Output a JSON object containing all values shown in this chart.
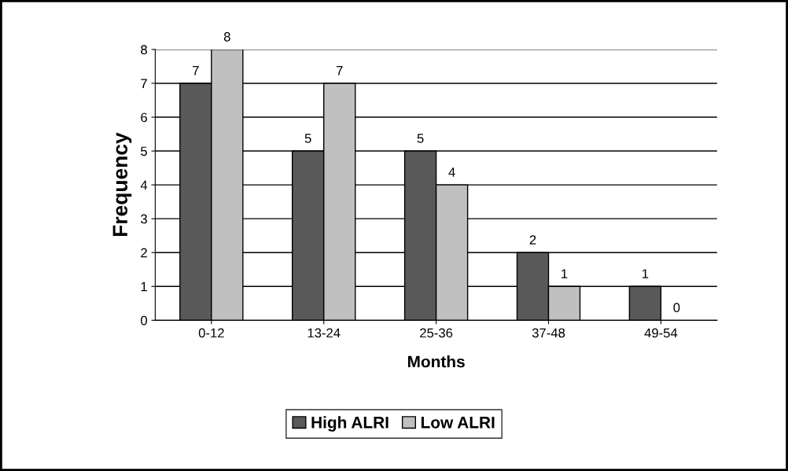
{
  "chart_data": {
    "type": "bar",
    "xlabel": "Months",
    "ylabel": "Frequency",
    "categories": [
      "0-12",
      "13-24",
      "25-36",
      "37-48",
      "49-54"
    ],
    "series": [
      {
        "name": "High ALRI",
        "color": "#595959",
        "values": [
          7,
          5,
          5,
          2,
          1
        ]
      },
      {
        "name": "Low ALRI",
        "color": "#c0c0c0",
        "values": [
          8,
          7,
          4,
          1,
          0
        ]
      }
    ],
    "ylim": [
      0,
      8
    ],
    "yticks": [
      0,
      1,
      2,
      3,
      4,
      5,
      6,
      7,
      8
    ],
    "grid": "y",
    "legend": "bottom",
    "data_labels": true
  }
}
